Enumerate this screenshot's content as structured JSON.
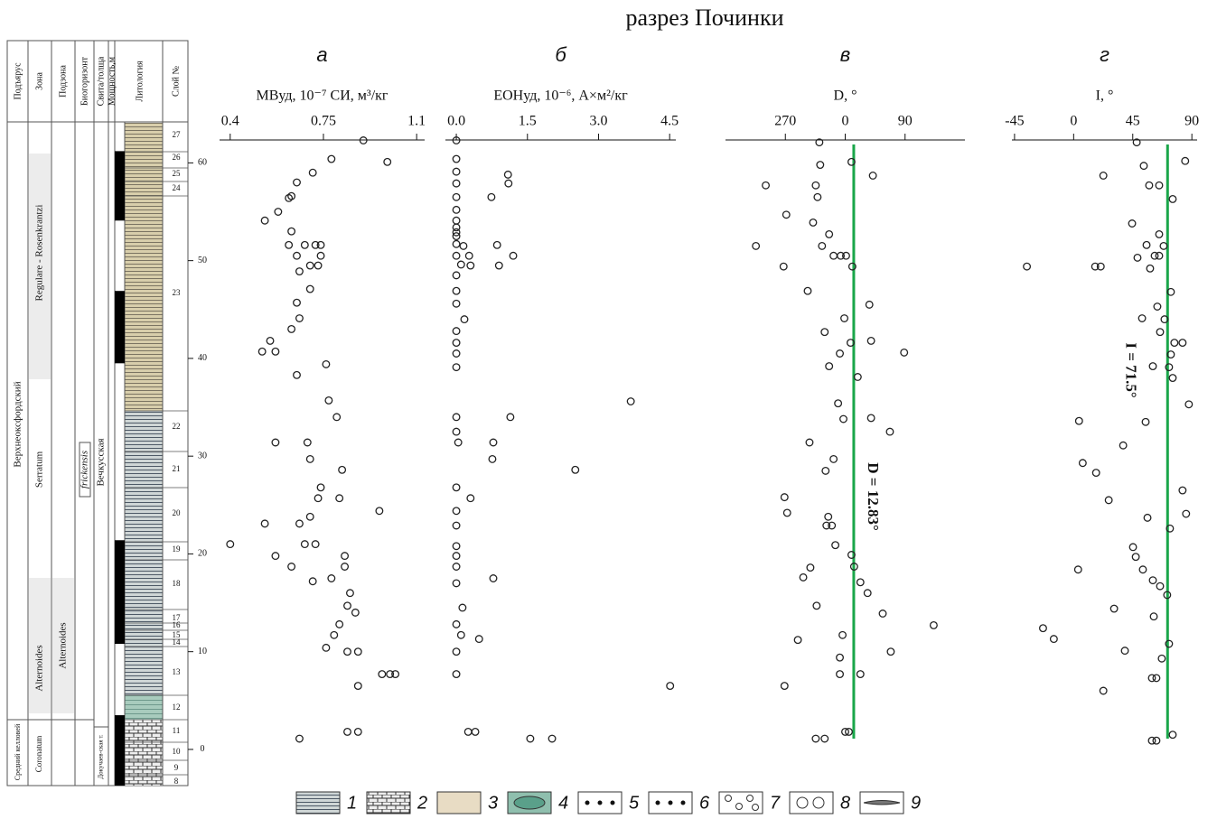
{
  "title": "разрез Починки",
  "column": {
    "headers": [
      "Подъярус",
      "Зона",
      "Подзона",
      "Биогоризонт",
      "Свита/толща",
      "Мощность,м",
      "Литология",
      "Слой №"
    ],
    "units": [
      "Верхнеоксфордский",
      "Средний келловей",
      "Regulare - Rosenkrantzi",
      "Serratum",
      "Alternoides",
      "Coronatum",
      "Alternoides",
      "frickensis",
      "Вечкусская",
      "Докучаев-ская т."
    ],
    "layers": [
      "27",
      "26",
      "25",
      "24",
      "23",
      "22",
      "21",
      "20",
      "19",
      "18",
      "17",
      "16",
      "15",
      "14",
      "13",
      "12",
      "11",
      "10",
      "9",
      "8"
    ],
    "ylim": [
      -3.7,
      64.1
    ],
    "yticks": [
      0,
      10,
      20,
      30,
      40,
      50,
      60
    ],
    "normal_polarity": [
      [
        61.2,
        54.1
      ],
      [
        46.9,
        39.5
      ],
      [
        21.4,
        10.8
      ],
      [
        3.5,
        -3.7
      ]
    ]
  },
  "chart_data": [
    {
      "type": "scatter",
      "label": "а",
      "xlabel": "MBуд, 10⁻⁷ СИ, м³/кг",
      "color": "#222222",
      "xlim": [
        0.36,
        1.13
      ],
      "xticks": [
        0.4,
        0.75,
        1.1
      ],
      "ylim": [
        -3.7,
        64.1
      ],
      "x": [
        0.9,
        0.78,
        0.99,
        0.71,
        0.65,
        0.62,
        0.63,
        0.58,
        0.53,
        0.63,
        0.68,
        0.74,
        0.62,
        0.72,
        0.65,
        0.74,
        0.7,
        0.73,
        0.66,
        0.7,
        0.65,
        0.66,
        0.63,
        0.55,
        0.52,
        0.57,
        0.76,
        0.65,
        0.77,
        0.8,
        0.57,
        0.69,
        0.7,
        0.82,
        0.74,
        0.73,
        0.81,
        0.96,
        0.7,
        0.53,
        0.66,
        0.4,
        0.68,
        0.72,
        0.83,
        0.57,
        0.63,
        0.83,
        0.78,
        0.71,
        0.85,
        0.84,
        0.87,
        0.81,
        0.79,
        0.76,
        0.84,
        0.88,
        0.97,
        1.0,
        1.02,
        0.88,
        0.84,
        0.88,
        0.66
      ],
      "values": [
        62.3,
        60.4,
        60.1,
        59.0,
        58.0,
        56.4,
        56.6,
        55.0,
        54.1,
        53.0,
        51.6,
        51.6,
        51.6,
        51.6,
        50.5,
        50.5,
        49.5,
        49.5,
        48.9,
        47.1,
        45.7,
        44.1,
        43.0,
        41.8,
        40.7,
        40.7,
        39.4,
        38.3,
        35.7,
        34.0,
        31.4,
        31.4,
        29.7,
        28.6,
        26.8,
        25.7,
        25.7,
        24.4,
        23.8,
        23.1,
        23.1,
        21.0,
        21.0,
        21.0,
        19.8,
        19.8,
        18.7,
        18.7,
        17.5,
        17.2,
        16.0,
        14.7,
        14.0,
        12.8,
        11.7,
        10.4,
        10.0,
        10.0,
        7.7,
        7.7,
        7.7,
        6.5,
        1.8,
        1.8,
        1.1
      ]
    },
    {
      "type": "scatter",
      "label": "б",
      "xlabel": "EOHуд, 10⁻⁶, A×м²/кг",
      "color": "#222222",
      "xlim": [
        -0.23,
        4.63
      ],
      "xticks": [
        {
          "value": 0,
          "label": "0.0"
        },
        1.5,
        {
          "value": 3,
          "label": "3.0"
        },
        4.5
      ],
      "ylim": [
        -3.7,
        64.1
      ],
      "x": [
        0.0,
        0.0,
        0.0,
        1.09,
        1.1,
        0.0,
        0.74,
        0.0,
        0.0,
        0.0,
        0.0,
        0.0,
        0.0,
        0.0,
        0.86,
        0.15,
        0.0,
        0.27,
        1.2,
        0.1,
        0.3,
        0.9,
        0.0,
        0.0,
        0.0,
        0.17,
        0.0,
        0.0,
        0.0,
        0.0,
        3.68,
        0.0,
        1.14,
        0.0,
        0.78,
        0.04,
        0.76,
        2.51,
        0.0,
        0.3,
        0.0,
        0.0,
        0.0,
        0.0,
        0.0,
        0.78,
        0.0,
        0.13,
        0.0,
        0.1,
        0.48,
        0.0,
        0.0,
        4.51,
        0.25,
        0.4,
        1.56,
        2.02
      ],
      "values": [
        62.3,
        60.4,
        59.1,
        58.8,
        57.9,
        57.9,
        56.5,
        56.5,
        55.2,
        54.1,
        53.4,
        52.9,
        52.5,
        51.7,
        51.6,
        51.5,
        50.5,
        50.5,
        50.5,
        49.6,
        49.5,
        49.5,
        48.5,
        46.9,
        45.6,
        44.0,
        42.8,
        41.6,
        40.5,
        39.1,
        35.6,
        34.0,
        34.0,
        32.5,
        31.4,
        31.4,
        29.7,
        28.6,
        26.8,
        25.7,
        24.4,
        22.9,
        20.8,
        19.8,
        18.7,
        17.5,
        17.0,
        14.5,
        12.8,
        11.7,
        11.3,
        10.0,
        7.7,
        6.5,
        1.8,
        1.8,
        1.1,
        1.1
      ]
    },
    {
      "type": "scatter",
      "label": "в",
      "xlabel": "D, °",
      "color": "#222222",
      "xlim": [
        -180,
        180
      ],
      "xticks": [
        {
          "value": -90,
          "label": "270"
        },
        0,
        90
      ],
      "ylim": [
        -3.7,
        64.1
      ],
      "reference": {
        "value": 12.83,
        "label": "D = 12.83°",
        "color": "#1aa64a"
      },
      "x": [
        -38.9,
        -37.6,
        9.4,
        41.6,
        -119.5,
        -44.3,
        -41.6,
        -88.6,
        -48.3,
        -24.2,
        -34.9,
        -134.3,
        -17.5,
        -6.7,
        1.3,
        -92.7,
        10.7,
        -56.4,
        36.3,
        -1.3,
        -30.9,
        8.1,
        38.9,
        88.6,
        -8.1,
        -24.2,
        18.8,
        -10.7,
        38.9,
        -2.7,
        67.2,
        -53.7,
        -17.5,
        -29.5,
        -91.3,
        -87.3,
        -25.5,
        -20.1,
        -28.2,
        -14.8,
        9.4,
        13.4,
        -52.4,
        -63.1,
        22.8,
        33.6,
        -43.0,
        56.4,
        133.0,
        -4.0,
        -71.2,
        68.5,
        -8.1,
        -8.1,
        22.8,
        -91.3,
        0.0,
        5.4,
        -44.3,
        -30.9
      ],
      "values": [
        62.1,
        59.8,
        60.1,
        58.7,
        57.7,
        57.7,
        56.5,
        54.7,
        53.9,
        52.7,
        51.5,
        51.5,
        50.5,
        50.5,
        50.5,
        49.4,
        49.4,
        46.9,
        45.5,
        44.1,
        42.7,
        41.6,
        41.8,
        40.6,
        40.5,
        39.2,
        38.1,
        35.4,
        33.9,
        33.8,
        32.5,
        31.4,
        29.7,
        28.5,
        25.8,
        24.2,
        23.8,
        22.9,
        22.9,
        20.9,
        19.9,
        18.7,
        18.6,
        17.6,
        17.1,
        16.0,
        14.7,
        13.9,
        12.7,
        11.7,
        11.2,
        10.0,
        9.4,
        7.7,
        7.7,
        6.5,
        1.8,
        1.8,
        1.1,
        1.1
      ]
    },
    {
      "type": "scatter",
      "label": "г",
      "xlabel": "I, °",
      "color": "#222222",
      "xlim": [
        -47,
        94
      ],
      "xticks": [
        -45,
        0,
        45,
        90
      ],
      "ylim": [
        -3.7,
        64.1
      ],
      "reference": {
        "value": 71.5,
        "label": "I = 71.5°",
        "color": "#1aa64a"
      },
      "x": [
        48.0,
        84.9,
        53.4,
        22.6,
        57.5,
        65.1,
        75.4,
        44.5,
        65.1,
        55.5,
        68.5,
        61.7,
        48.6,
        65.1,
        -35.6,
        16.4,
        20.6,
        58.2,
        74.0,
        63.7,
        52.1,
        69.2,
        65.8,
        82.9,
        76.7,
        74.0,
        72.6,
        60.3,
        75.4,
        87.7,
        4.1,
        54.8,
        37.7,
        6.9,
        17.1,
        82.9,
        26.7,
        85.6,
        56.2,
        73.3,
        45.2,
        47.3,
        52.7,
        3.4,
        60.3,
        65.8,
        71.2,
        30.8,
        61.0,
        -23.3,
        -15.1,
        72.6,
        39.0,
        67.1,
        59.6,
        63.0,
        22.6,
        75.4,
        59.6,
        63.0
      ],
      "values": [
        62.1,
        60.2,
        59.7,
        58.7,
        57.7,
        57.7,
        56.3,
        53.8,
        52.7,
        51.6,
        51.5,
        50.5,
        50.3,
        50.5,
        49.4,
        49.4,
        49.4,
        49.2,
        46.8,
        45.3,
        44.1,
        44.0,
        42.7,
        41.6,
        41.6,
        40.4,
        39.1,
        39.2,
        38.0,
        35.3,
        33.6,
        33.5,
        31.1,
        29.3,
        28.3,
        26.5,
        25.5,
        24.1,
        23.7,
        22.6,
        20.7,
        19.7,
        18.4,
        18.4,
        17.3,
        16.7,
        15.8,
        14.4,
        13.6,
        12.4,
        11.3,
        10.8,
        10.1,
        9.3,
        7.3,
        7.3,
        6.0,
        1.5,
        0.9,
        0.9
      ]
    }
  ],
  "legend": [
    "1",
    "2",
    "3",
    "4",
    "5",
    "6",
    "7",
    "8",
    "9"
  ]
}
